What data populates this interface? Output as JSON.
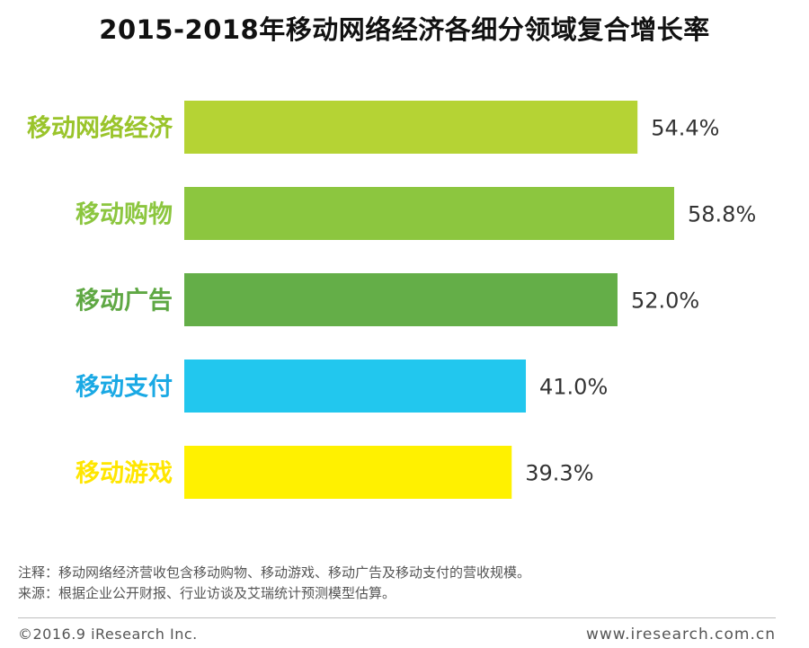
{
  "chart_data": {
    "type": "bar",
    "orientation": "horizontal",
    "title": "2015-2018年移动网络经济各细分领域复合增长率",
    "categories": [
      "移动网络经济",
      "移动购物",
      "移动广告",
      "移动支付",
      "移动游戏"
    ],
    "values": [
      54.4,
      58.8,
      52.0,
      41.0,
      39.3
    ],
    "value_labels": [
      "54.4%",
      "58.8%",
      "52.0%",
      "41.0%",
      "39.3%"
    ],
    "colors": [
      "#b5d334",
      "#8cc63f",
      "#64ae48",
      "#22c7ee",
      "#fff100"
    ],
    "label_colors": [
      "#9ac42b",
      "#8cc63f",
      "#5fa844",
      "#1aa9e4",
      "#ffe600"
    ],
    "unit": "%",
    "xlim": [
      0,
      60
    ],
    "xlabel": "",
    "ylabel": "",
    "grid": false,
    "legend": "none"
  },
  "notes": {
    "note": "注释：移动网络经济营收包含移动购物、移动游戏、移动广告及移动支付的营收规模。",
    "source": "来源：根据企业公开财报、行业访谈及艾瑞统计预测模型估算。"
  },
  "footer": {
    "copyright": "©2016.9 iResearch Inc.",
    "site": "www.iresearch.com.cn"
  }
}
